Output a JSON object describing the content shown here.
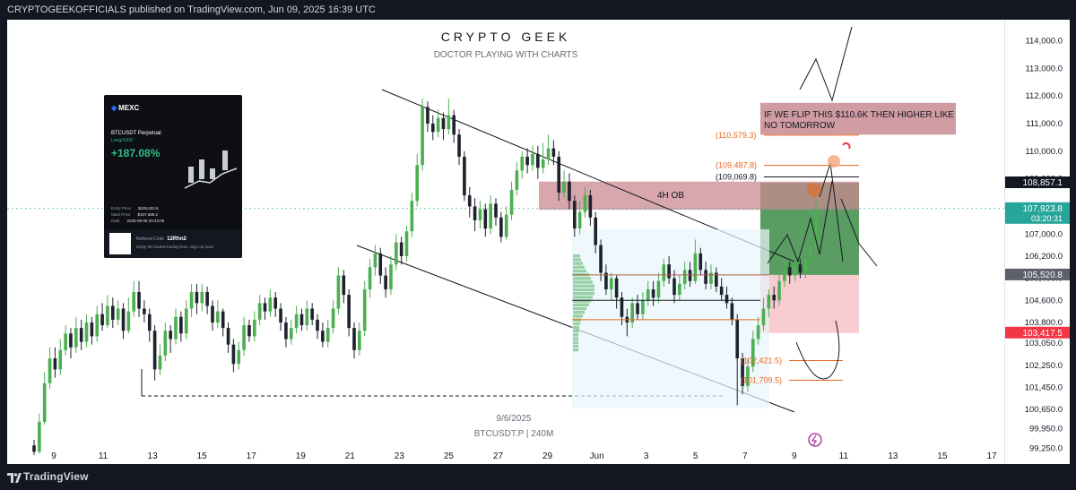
{
  "header": {
    "publish_text": "CRYPTOGEEKOFFICIALS published on TradingView.com, Jun 09, 2025 16:39 UTC"
  },
  "watermark": {
    "title": "CRYPTO GEEK",
    "subtitle": "DOCTOR PLAYING WITH CHARTS"
  },
  "footer": {
    "brand": "TradingView"
  },
  "colors": {
    "up": "#4caf50",
    "down": "#1e222d",
    "ob_zone": "#c98a92",
    "target_zone": "#3d8c46",
    "stop_zone": "#f7c5cc",
    "level_orange": "#e8681d",
    "price_badge_green": "#26a69a",
    "price_badge_red": "#f23645"
  },
  "ad_card": {
    "brand": "MEXC",
    "pair": "BTCUSDT Perpetual",
    "leverage": "Long/100X",
    "pnl": "+187.08%",
    "rows": [
      {
        "label": "Entry Price",
        "value": "$105,833.9"
      },
      {
        "label": "Mark Price",
        "value": "$107,689.2"
      },
      {
        "label": "Date",
        "value": "2025-06-09 20:43:09"
      }
    ],
    "referral_label": "Referral Code",
    "referral_code": "12Rhn2",
    "referral_text": "Enjoy the lowest trading fees. Sign up now!"
  },
  "chart_data": {
    "type": "candlestick",
    "symbol_label": "BTCUSDT.P | 240M",
    "date_label": "9/6/2025",
    "x_tick_labels": [
      "9",
      "11",
      "13",
      "15",
      "17",
      "19",
      "21",
      "23",
      "25",
      "27",
      "29",
      "Jun",
      "3",
      "5",
      "7",
      "9",
      "11",
      "13",
      "15",
      "17"
    ],
    "ylim": [
      99000,
      114500
    ],
    "y_ticks": [
      114000,
      113000,
      112000,
      111000,
      110000,
      109000,
      108000,
      107000,
      106200,
      105400,
      104600,
      103800,
      103050,
      102250,
      101450,
      100650,
      99950,
      99250
    ],
    "y_tick_labels": [
      "114,000.0",
      "113,000.0",
      "112,000.0",
      "111,000.0",
      "110,000.0",
      "109,000.0",
      "108,000.0",
      "107,000.0",
      "106,200.0",
      "105,400.0",
      "104,600.0",
      "103,800.0",
      "103,050.0",
      "102,250.0",
      "101,450.0",
      "100,650.0",
      "99,950.0",
      "99,250.0"
    ],
    "price_badges": [
      {
        "label": "108,857.1",
        "value": 108857.1,
        "color": "#131722"
      },
      {
        "label": "107,923.8",
        "sublabel": "03:20:31",
        "value": 107923.8,
        "color": "#26a69a"
      },
      {
        "label": "105,520.8",
        "value": 105520.8,
        "color": "#5d606b"
      },
      {
        "label": "103,417.5",
        "value": 103417.5,
        "color": "#f23645"
      }
    ],
    "levels": [
      {
        "label": "(110,579.3)",
        "value": 110579.3,
        "color": "#e8681d"
      },
      {
        "label": "(109,487.8)",
        "value": 109487.8,
        "color": "#e8681d"
      },
      {
        "label": "(109,069.8)",
        "value": 109069.8,
        "color": "#131722"
      },
      {
        "label": "(102,421.5)",
        "value": 102421.5,
        "color": "#e8681d"
      },
      {
        "label": "(101,709.5)",
        "value": 101709.5,
        "color": "#e8681d"
      }
    ],
    "annotations": {
      "ob_label": "4H OB",
      "flip_note": "IF WE FLIP THIS $110.6K THEN HIGHER LIKE NO TOMORROW"
    },
    "zones": {
      "ob": [
        107880,
        108900
      ],
      "target": [
        105520,
        108857
      ],
      "stop": [
        103417,
        105520
      ],
      "note_box": [
        110600,
        111750
      ]
    },
    "candles": [
      [
        99350,
        99120,
        99550,
        99000
      ],
      [
        99120,
        100200,
        100500,
        99050
      ],
      [
        100200,
        101600,
        102000,
        100100
      ],
      [
        101600,
        102500,
        102900,
        101400
      ],
      [
        102500,
        102100,
        102900,
        101800
      ],
      [
        102100,
        102800,
        103200,
        101900
      ],
      [
        102800,
        103400,
        103700,
        102600
      ],
      [
        103400,
        102900,
        103600,
        102500
      ],
      [
        102900,
        103600,
        104000,
        102700
      ],
      [
        103600,
        103100,
        103900,
        102800
      ],
      [
        103100,
        103800,
        104100,
        102900
      ],
      [
        103800,
        103300,
        104000,
        103000
      ],
      [
        103300,
        104100,
        104400,
        103100
      ],
      [
        104100,
        103700,
        104500,
        103500
      ],
      [
        103700,
        104400,
        104800,
        103600
      ],
      [
        104400,
        103900,
        104700,
        103600
      ],
      [
        103900,
        104300,
        104600,
        103700
      ],
      [
        104300,
        103500,
        104500,
        103200
      ],
      [
        103500,
        104200,
        104700,
        103400
      ],
      [
        104200,
        104900,
        105300,
        104000
      ],
      [
        104900,
        104300,
        105300,
        104000
      ],
      [
        104300,
        104100,
        104600,
        103800
      ],
      [
        104100,
        103500,
        104300,
        103100
      ],
      [
        103500,
        102100,
        103700,
        101700
      ],
      [
        102100,
        102600,
        103000,
        101900
      ],
      [
        102600,
        103500,
        103800,
        102400
      ],
      [
        103500,
        103200,
        103700,
        102700
      ],
      [
        103200,
        104000,
        104300,
        103000
      ],
      [
        104000,
        103400,
        104200,
        103100
      ],
      [
        103400,
        104300,
        104600,
        103200
      ],
      [
        104300,
        104900,
        105200,
        104000
      ],
      [
        104900,
        104500,
        105200,
        104100
      ],
      [
        104500,
        104900,
        105200,
        104200
      ],
      [
        104900,
        104400,
        105100,
        104100
      ],
      [
        104400,
        103800,
        104600,
        103500
      ],
      [
        103800,
        104200,
        104600,
        103600
      ],
      [
        104200,
        103600,
        104300,
        103300
      ],
      [
        103600,
        103000,
        103800,
        102700
      ],
      [
        103000,
        102300,
        103200,
        102000
      ],
      [
        102300,
        102800,
        103100,
        102100
      ],
      [
        102800,
        103700,
        104000,
        102600
      ],
      [
        103700,
        103300,
        103900,
        103100
      ],
      [
        103300,
        103900,
        104200,
        103100
      ],
      [
        103900,
        104500,
        104800,
        103700
      ],
      [
        104500,
        104200,
        104700,
        103900
      ],
      [
        104200,
        104700,
        105000,
        104000
      ],
      [
        104700,
        104300,
        104900,
        104000
      ],
      [
        104300,
        103800,
        104500,
        103500
      ],
      [
        103800,
        103200,
        104000,
        102900
      ],
      [
        103200,
        103600,
        103900,
        103000
      ],
      [
        103600,
        104100,
        104400,
        103400
      ],
      [
        104100,
        103700,
        104300,
        103500
      ],
      [
        103700,
        104300,
        104600,
        103500
      ],
      [
        104300,
        103900,
        104500,
        103700
      ],
      [
        103900,
        103500,
        104100,
        103200
      ],
      [
        103500,
        103100,
        103800,
        102900
      ],
      [
        103100,
        103600,
        103900,
        102900
      ],
      [
        103600,
        104300,
        104600,
        103400
      ],
      [
        104300,
        105500,
        105800,
        104100
      ],
      [
        105500,
        104800,
        105700,
        104500
      ],
      [
        104800,
        103600,
        105000,
        103300
      ],
      [
        103600,
        102800,
        103800,
        102500
      ],
      [
        102800,
        103500,
        103800,
        102600
      ],
      [
        103500,
        105000,
        105300,
        103300
      ],
      [
        105000,
        105800,
        106100,
        104700
      ],
      [
        105800,
        106300,
        106600,
        105500
      ],
      [
        106300,
        105500,
        106500,
        105200
      ],
      [
        105500,
        105000,
        105800,
        104700
      ],
      [
        105000,
        105900,
        106200,
        104800
      ],
      [
        105900,
        106700,
        107000,
        105700
      ],
      [
        106700,
        106200,
        106900,
        105900
      ],
      [
        106200,
        107100,
        107300,
        106000
      ],
      [
        107100,
        108200,
        108500,
        106900
      ],
      [
        108200,
        109500,
        109900,
        108000
      ],
      [
        109500,
        111600,
        111900,
        109300
      ],
      [
        111600,
        111000,
        111800,
        110700
      ],
      [
        111000,
        110700,
        111300,
        110400
      ],
      [
        110700,
        111200,
        111500,
        110500
      ],
      [
        111200,
        110800,
        111400,
        110400
      ],
      [
        110800,
        111300,
        111900,
        110600
      ],
      [
        111300,
        110600,
        111500,
        110300
      ],
      [
        110600,
        109800,
        110800,
        109500
      ],
      [
        109800,
        108400,
        110000,
        108200
      ],
      [
        108400,
        108000,
        108700,
        107600
      ],
      [
        108000,
        107500,
        108300,
        107100
      ],
      [
        107500,
        107900,
        108200,
        107200
      ],
      [
        107900,
        107200,
        108100,
        106900
      ],
      [
        107200,
        108100,
        108400,
        107000
      ],
      [
        108100,
        107600,
        108300,
        107300
      ],
      [
        107600,
        106900,
        107800,
        106700
      ],
      [
        106900,
        107700,
        108000,
        106800
      ],
      [
        107700,
        108600,
        108900,
        107500
      ],
      [
        108600,
        109300,
        109600,
        108400
      ],
      [
        109300,
        109800,
        110000,
        109000
      ],
      [
        109800,
        109500,
        110100,
        109200
      ],
      [
        109500,
        109900,
        110200,
        109300
      ],
      [
        109900,
        109400,
        110200,
        109000
      ],
      [
        109400,
        109700,
        110300,
        109200
      ],
      [
        109700,
        110100,
        110600,
        109500
      ],
      [
        110100,
        109800,
        110400,
        109500
      ],
      [
        109800,
        108500,
        110000,
        108200
      ],
      [
        108500,
        108900,
        109300,
        108300
      ],
      [
        108900,
        108200,
        109200,
        107900
      ],
      [
        108200,
        107200,
        108400,
        106900
      ],
      [
        107200,
        107800,
        108200,
        107000
      ],
      [
        107800,
        108400,
        108700,
        107600
      ],
      [
        108400,
        107600,
        108600,
        107300
      ],
      [
        107600,
        106600,
        107800,
        106300
      ],
      [
        106600,
        105600,
        106800,
        105300
      ],
      [
        105600,
        105000,
        105900,
        104800
      ],
      [
        105000,
        105400,
        105600,
        104600
      ],
      [
        105400,
        104700,
        105500,
        104300
      ],
      [
        104700,
        104000,
        104900,
        103700
      ],
      [
        104000,
        103800,
        104300,
        103300
      ],
      [
        103800,
        104500,
        104700,
        103600
      ],
      [
        104500,
        104100,
        104800,
        103900
      ],
      [
        104100,
        104600,
        104900,
        103900
      ],
      [
        104600,
        105000,
        105300,
        104400
      ],
      [
        105000,
        104700,
        105300,
        104400
      ],
      [
        104700,
        105300,
        105600,
        104500
      ],
      [
        105300,
        105900,
        106100,
        105100
      ],
      [
        105900,
        105400,
        106200,
        105200
      ],
      [
        105400,
        104800,
        105700,
        104500
      ],
      [
        104800,
        105200,
        105500,
        104600
      ],
      [
        105200,
        105700,
        106000,
        105000
      ],
      [
        105700,
        105300,
        106000,
        105100
      ],
      [
        105300,
        106300,
        106800,
        105200
      ],
      [
        106300,
        105700,
        106500,
        105500
      ],
      [
        105700,
        105200,
        106000,
        105000
      ],
      [
        105200,
        105600,
        105900,
        105000
      ],
      [
        105600,
        105100,
        105800,
        104900
      ],
      [
        105100,
        104800,
        105400,
        104600
      ],
      [
        104800,
        104500,
        105100,
        104300
      ],
      [
        104500,
        103900,
        104700,
        103700
      ],
      [
        103900,
        102500,
        104100,
        100800
      ],
      [
        102500,
        101500,
        102700,
        101200
      ],
      [
        101500,
        102200,
        102500,
        101300
      ],
      [
        102200,
        103200,
        103500,
        102000
      ],
      [
        103200,
        103700,
        104000,
        103000
      ],
      [
        103700,
        104300,
        104700,
        103500
      ],
      [
        104300,
        104800,
        105000,
        104000
      ],
      [
        104800,
        104600,
        105100,
        104300
      ],
      [
        104600,
        105300,
        105600,
        104400
      ],
      [
        105300,
        105800,
        106000,
        105100
      ],
      [
        105800,
        105500,
        106000,
        105200
      ],
      [
        105500,
        105900,
        106200,
        105300
      ],
      [
        105900,
        105600,
        106100,
        105400
      ],
      [
        105600,
        106100,
        106400,
        105400
      ],
      [
        106100,
        106500,
        107500,
        105900
      ],
      [
        106500,
        107900,
        108200,
        106200
      ]
    ]
  }
}
